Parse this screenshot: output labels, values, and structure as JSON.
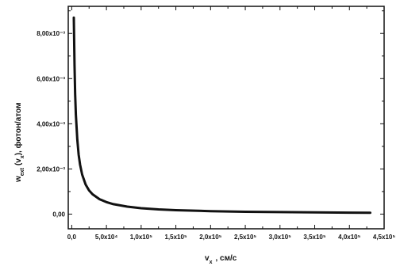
{
  "chart_data": {
    "type": "line",
    "xlabel": "v  , см/с",
    "xlabel_main": "v",
    "xlabel_sub": "x",
    "xlabel_rest": ", см/с",
    "ylabel_main": "w",
    "ylabel_sub": "ext",
    "ylabel_mid": "(v",
    "ylabel_sub2": "x",
    "ylabel_rest": "), фотон/атом",
    "xlim": [
      -5000,
      450000
    ],
    "ylim": [
      -0.00065,
      0.0092
    ],
    "x_ticks": [
      0,
      50000,
      100000,
      150000,
      200000,
      250000,
      300000,
      350000,
      400000,
      450000
    ],
    "x_tick_labels": [
      "0,0",
      "5,0x10⁴",
      "1,0x10⁵",
      "1,5x10⁵",
      "2,0x10⁵",
      "2,5x10⁵",
      "3,0x10⁵",
      "3,5x10⁵",
      "4,0x10⁵",
      "4,5x10⁵"
    ],
    "y_ticks": [
      0,
      0.002,
      0.004,
      0.006,
      0.008
    ],
    "y_tick_labels": [
      "0,00",
      "2,00x10⁻³",
      "4,00x10⁻³",
      "6,00x10⁻³",
      "8,00x10⁻³"
    ],
    "series": [
      {
        "x": [
          3000,
          4000,
          5000,
          6000,
          8000,
          10000,
          12000,
          15000,
          20000,
          25000,
          30000,
          40000,
          50000,
          60000,
          80000,
          100000,
          125000,
          150000,
          200000,
          250000,
          300000,
          350000,
          400000,
          430000
        ],
        "y": [
          0.0087,
          0.0066,
          0.0053,
          0.0044,
          0.0033,
          0.00263,
          0.00219,
          0.00175,
          0.00131,
          0.00105,
          0.00088,
          0.00066,
          0.00053,
          0.00044,
          0.00033,
          0.00026,
          0.00021,
          0.000175,
          0.000131,
          0.000105,
          8.8e-05,
          7.5e-05,
          6.6e-05,
          6.1e-05
        ]
      }
    ]
  }
}
